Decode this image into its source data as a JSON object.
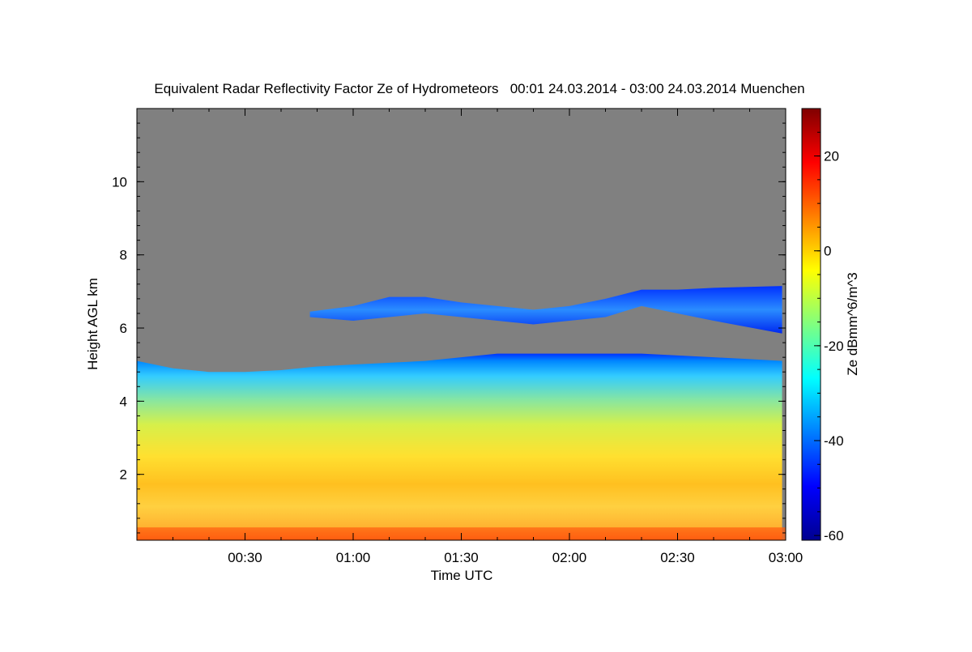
{
  "chart_data": {
    "type": "heatmap",
    "title": "Equivalent Radar Reflectivity Factor Ze of Hydrometeors   00:01 24.03.2014 - 03:00 24.03.2014 Muenchen",
    "xlabel": "Time UTC",
    "ylabel": "Height AGL km",
    "x_range": [
      "00:01",
      "03:00"
    ],
    "x_ticks": [
      "00:30",
      "01:00",
      "01:30",
      "02:00",
      "02:30",
      "03:00"
    ],
    "y_range": [
      0.2,
      12.0
    ],
    "y_ticks": [
      2,
      4,
      6,
      8,
      10
    ],
    "colorbar": {
      "label": "Ze dBmm^6/m^3",
      "range": [
        -61,
        30
      ],
      "ticks": [
        20,
        0,
        -20,
        -40,
        -60
      ],
      "colormap": "jet"
    },
    "background_color": "#808080",
    "cloud_layers": [
      {
        "name": "lower",
        "time_range": [
          "00:01",
          "03:00"
        ],
        "top_height_km": [
          [
            0,
            5.1
          ],
          [
            10,
            4.9
          ],
          [
            20,
            4.8
          ],
          [
            30,
            4.8
          ],
          [
            40,
            4.85
          ],
          [
            50,
            4.95
          ],
          [
            60,
            5.0
          ],
          [
            70,
            5.05
          ],
          [
            80,
            5.1
          ],
          [
            90,
            5.2
          ],
          [
            100,
            5.3
          ],
          [
            110,
            5.3
          ],
          [
            120,
            5.3
          ],
          [
            130,
            5.3
          ],
          [
            140,
            5.3
          ],
          [
            150,
            5.25
          ],
          [
            160,
            5.2
          ],
          [
            170,
            5.15
          ],
          [
            179,
            5.1
          ]
        ],
        "base_height_km": 0.2,
        "approx_ze_dbz": {
          "surface": 15,
          "below_2km": 0,
          "2_to_4km": -10,
          "near_top": -40
        }
      },
      {
        "name": "upper",
        "time_range": [
          "00:48",
          "03:00"
        ],
        "top_height_km": [
          [
            48,
            6.45
          ],
          [
            60,
            6.6
          ],
          [
            70,
            6.85
          ],
          [
            80,
            6.85
          ],
          [
            90,
            6.7
          ],
          [
            100,
            6.6
          ],
          [
            110,
            6.5
          ],
          [
            120,
            6.6
          ],
          [
            130,
            6.8
          ],
          [
            140,
            7.05
          ],
          [
            150,
            7.05
          ],
          [
            160,
            7.1
          ],
          [
            179,
            7.15
          ]
        ],
        "bottom_height_km": [
          [
            48,
            6.3
          ],
          [
            60,
            6.2
          ],
          [
            70,
            6.3
          ],
          [
            80,
            6.4
          ],
          [
            90,
            6.3
          ],
          [
            100,
            6.2
          ],
          [
            110,
            6.1
          ],
          [
            120,
            6.2
          ],
          [
            130,
            6.3
          ],
          [
            140,
            6.6
          ],
          [
            150,
            6.4
          ],
          [
            160,
            6.2
          ],
          [
            179,
            5.85
          ]
        ],
        "approx_ze_dbz": -40
      }
    ]
  }
}
